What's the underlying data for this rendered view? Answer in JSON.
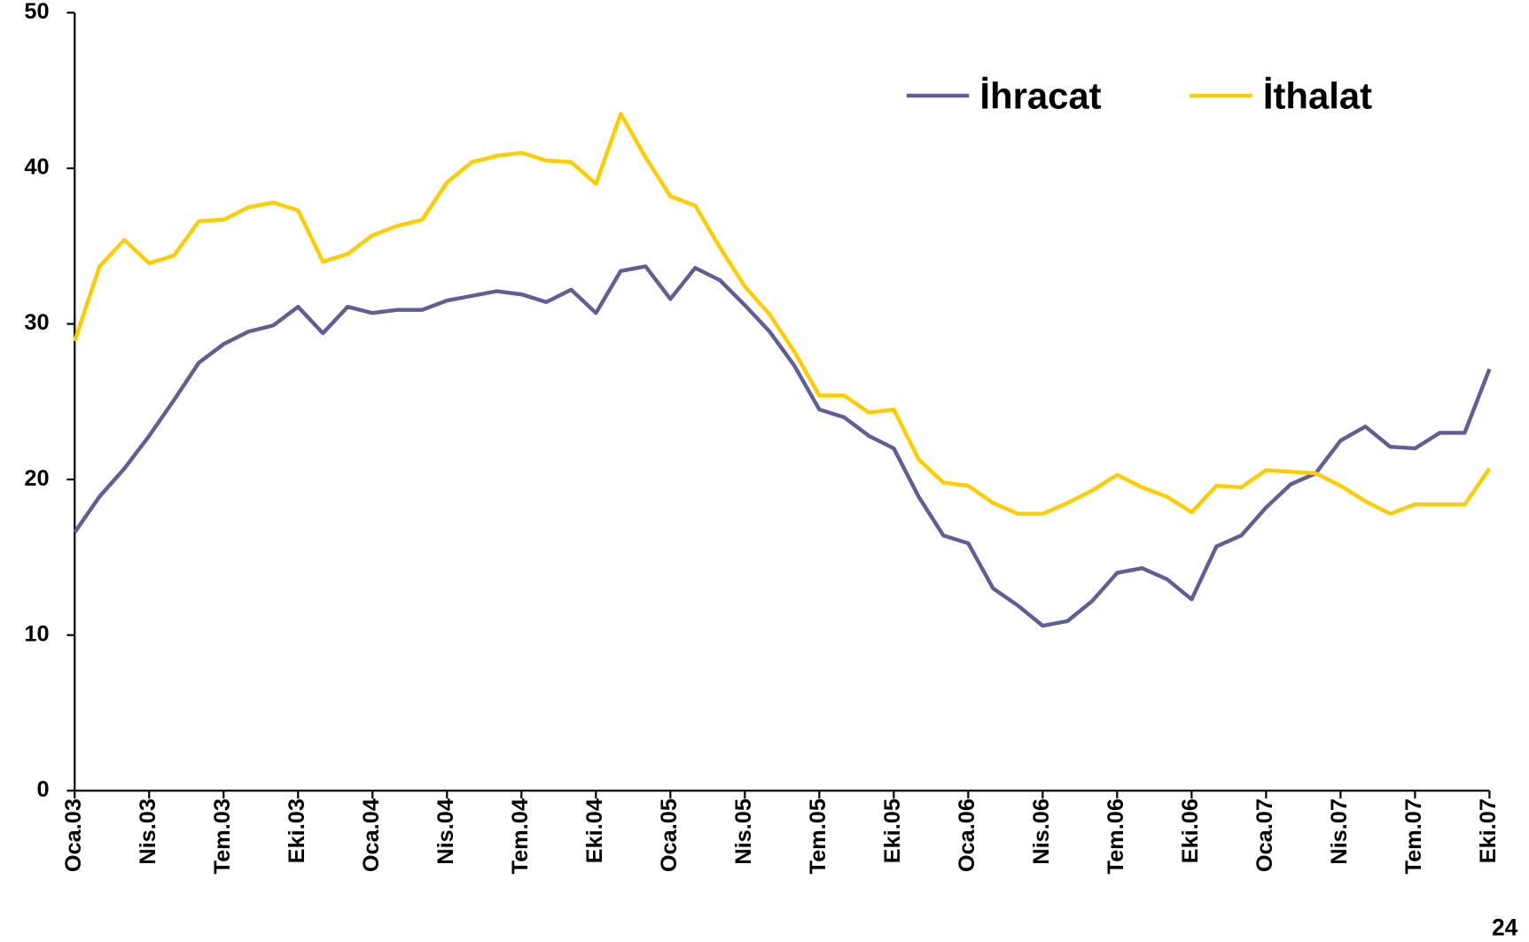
{
  "chart_data": {
    "type": "line",
    "categories": [
      "Oca.03",
      null,
      null,
      "Nis.03",
      null,
      null,
      "Tem.03",
      null,
      null,
      "Eki.03",
      null,
      null,
      "Oca.04",
      null,
      null,
      "Nis.04",
      null,
      null,
      "Tem.04",
      null,
      null,
      "Eki.04",
      null,
      null,
      "Oca.05",
      null,
      null,
      "Nis.05",
      null,
      null,
      "Tem.05",
      null,
      null,
      "Eki.05",
      null,
      null,
      "Oca.06",
      null,
      null,
      "Nis.06",
      null,
      null,
      "Tem.06",
      null,
      null,
      "Eki.06",
      null,
      null,
      "Oca.07",
      null,
      null,
      "Nis.07",
      null,
      null,
      "Tem.07",
      null,
      null,
      "Eki.07"
    ],
    "series": [
      {
        "name": "İhracat",
        "color": "#5f5f95",
        "values": [
          16.6,
          18.9,
          20.7,
          22.8,
          25.1,
          27.5,
          28.7,
          29.5,
          29.9,
          31.1,
          29.4,
          31.1,
          30.7,
          30.9,
          30.9,
          31.5,
          31.8,
          32.1,
          31.9,
          31.4,
          32.2,
          30.7,
          33.4,
          33.7,
          31.6,
          33.6,
          32.8,
          31.2,
          29.5,
          27.3,
          24.5,
          24.0,
          22.8,
          22.0,
          18.9,
          16.4,
          15.9,
          13.0,
          11.9,
          10.6,
          10.9,
          12.2,
          14.0,
          14.3,
          13.6,
          12.3,
          15.7,
          16.4,
          18.2,
          19.7,
          20.4,
          22.5,
          23.4,
          22.1,
          22.0,
          23.0,
          23.0,
          27.1
        ]
      },
      {
        "name": "İthalat",
        "color": "#ffcc00",
        "values": [
          28.9,
          33.7,
          35.4,
          33.9,
          34.4,
          36.6,
          36.7,
          37.5,
          37.8,
          37.3,
          34.0,
          34.5,
          35.7,
          36.3,
          36.7,
          39.1,
          40.4,
          40.8,
          41.0,
          40.5,
          40.4,
          39.0,
          43.5,
          40.7,
          38.2,
          37.6,
          34.9,
          32.4,
          30.6,
          28.2,
          25.4,
          25.4,
          24.3,
          24.5,
          21.3,
          19.8,
          19.6,
          18.5,
          17.8,
          17.8,
          18.5,
          19.3,
          20.3,
          19.5,
          18.9,
          17.9,
          19.6,
          19.5,
          20.6,
          20.5,
          20.4,
          19.6,
          18.6,
          17.8,
          18.4,
          18.4,
          18.4,
          20.7
        ]
      }
    ],
    "ylim": [
      0,
      50
    ],
    "yticks": [
      0,
      10,
      20,
      30,
      40,
      50
    ],
    "legend": "top-right"
  },
  "page_number": "24"
}
